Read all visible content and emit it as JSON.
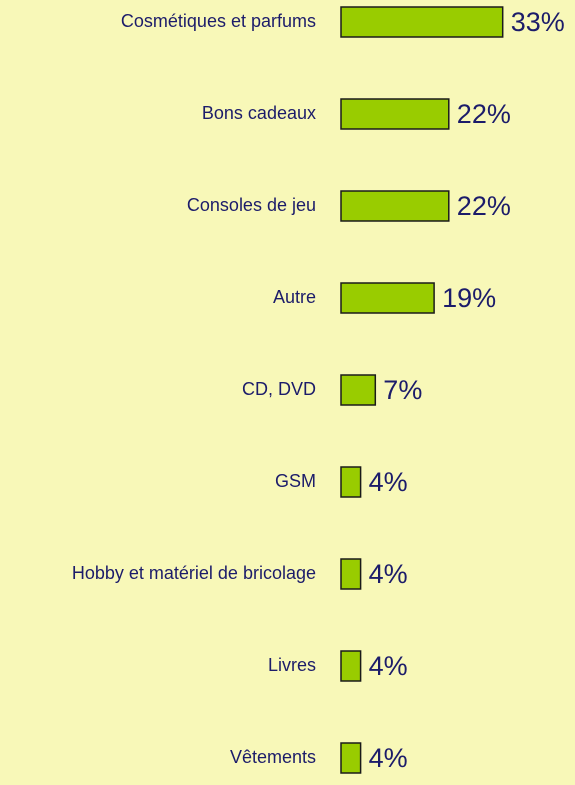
{
  "chart_data": {
    "type": "hbar",
    "categories": [
      "Cosmétiques et parfums",
      "Bons cadeaux",
      "Consoles de jeu",
      "Autre",
      "CD, DVD",
      "GSM",
      "Hobby et matériel de bricolage",
      "Livres",
      "Vêtements"
    ],
    "values": [
      33,
      22,
      22,
      19,
      7,
      4,
      4,
      4,
      4
    ],
    "value_labels": [
      "33%",
      "22%",
      "22%",
      "19%",
      "7%",
      "4%",
      "4%",
      "4%",
      "4%"
    ],
    "color": "#99cc00"
  }
}
